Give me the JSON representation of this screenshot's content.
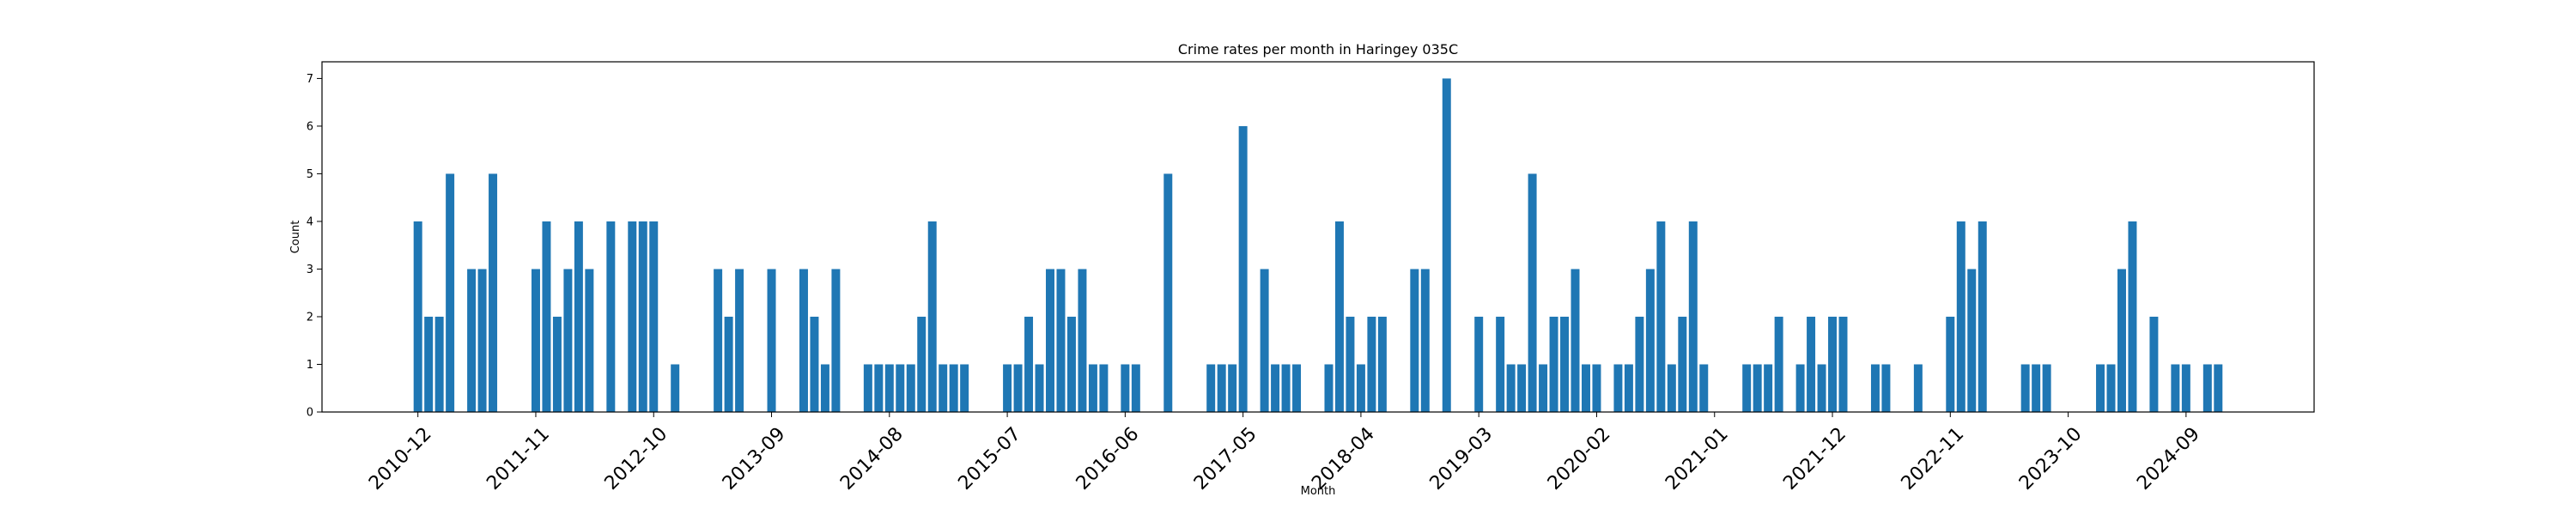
{
  "chart_data": {
    "type": "bar",
    "title": "Crime rates per month in Haringey 035C",
    "xlabel": "Month",
    "ylabel": "Count",
    "ylim": [
      0,
      7.35
    ],
    "yticks": [
      0,
      1,
      2,
      3,
      4,
      5,
      6,
      7
    ],
    "xtick_labels": [
      "2010-12",
      "2011-11",
      "2012-10",
      "2013-09",
      "2014-08",
      "2015-07",
      "2016-06",
      "2017-05",
      "2018-04",
      "2019-03",
      "2020-02",
      "2021-01",
      "2021-12",
      "2022-11",
      "2023-10",
      "2024-09"
    ],
    "x": [
      "2010-12",
      "2011-01",
      "2011-02",
      "2011-03",
      "2011-05",
      "2011-06",
      "2011-07",
      "2011-11",
      "2011-12",
      "2012-01",
      "2012-02",
      "2012-03",
      "2012-04",
      "2012-06",
      "2012-08",
      "2012-09",
      "2012-10",
      "2012-12",
      "2013-04",
      "2013-05",
      "2013-06",
      "2013-09",
      "2013-12",
      "2014-01",
      "2014-02",
      "2014-03",
      "2014-06",
      "2014-07",
      "2014-08",
      "2014-09",
      "2014-10",
      "2014-11",
      "2014-12",
      "2015-01",
      "2015-02",
      "2015-03",
      "2015-07",
      "2015-08",
      "2015-09",
      "2015-10",
      "2015-11",
      "2015-12",
      "2016-01",
      "2016-02",
      "2016-03",
      "2016-04",
      "2016-06",
      "2016-07",
      "2016-10",
      "2017-02",
      "2017-03",
      "2017-04",
      "2017-05",
      "2017-07",
      "2017-08",
      "2017-09",
      "2017-10",
      "2018-01",
      "2018-02",
      "2018-03",
      "2018-04",
      "2018-05",
      "2018-06",
      "2018-09",
      "2018-10",
      "2018-12",
      "2019-03",
      "2019-05",
      "2019-06",
      "2019-07",
      "2019-08",
      "2019-09",
      "2019-10",
      "2019-11",
      "2019-12",
      "2020-01",
      "2020-02",
      "2020-04",
      "2020-05",
      "2020-06",
      "2020-07",
      "2020-08",
      "2020-09",
      "2020-10",
      "2020-11",
      "2020-12",
      "2021-04",
      "2021-05",
      "2021-06",
      "2021-07",
      "2021-09",
      "2021-10",
      "2021-11",
      "2021-12",
      "2022-01",
      "2022-04",
      "2022-05",
      "2022-08",
      "2022-11",
      "2022-12",
      "2023-01",
      "2023-02",
      "2023-06",
      "2023-07",
      "2023-08",
      "2024-01",
      "2024-02",
      "2024-03",
      "2024-04",
      "2024-06",
      "2024-08",
      "2024-09",
      "2024-11",
      "2024-12"
    ],
    "values": [
      4,
      2,
      2,
      5,
      3,
      3,
      5,
      3,
      4,
      2,
      3,
      4,
      3,
      4,
      4,
      4,
      4,
      1,
      3,
      2,
      3,
      3,
      3,
      2,
      1,
      3,
      1,
      1,
      1,
      1,
      1,
      2,
      4,
      1,
      1,
      1,
      1,
      1,
      2,
      1,
      3,
      3,
      2,
      3,
      1,
      1,
      1,
      1,
      5,
      1,
      1,
      1,
      6,
      3,
      1,
      1,
      1,
      1,
      4,
      2,
      1,
      2,
      2,
      3,
      3,
      7,
      2,
      2,
      1,
      1,
      5,
      1,
      2,
      2,
      3,
      1,
      1,
      1,
      1,
      2,
      3,
      4,
      1,
      2,
      4,
      1,
      1,
      1,
      1,
      2,
      1,
      2,
      1,
      2,
      2,
      1,
      1,
      1,
      2,
      4,
      3,
      4,
      1,
      1,
      1,
      1,
      1,
      3,
      4,
      2,
      1,
      1,
      1,
      1
    ],
    "bar_color": "#1f77b4",
    "grid": false
  }
}
